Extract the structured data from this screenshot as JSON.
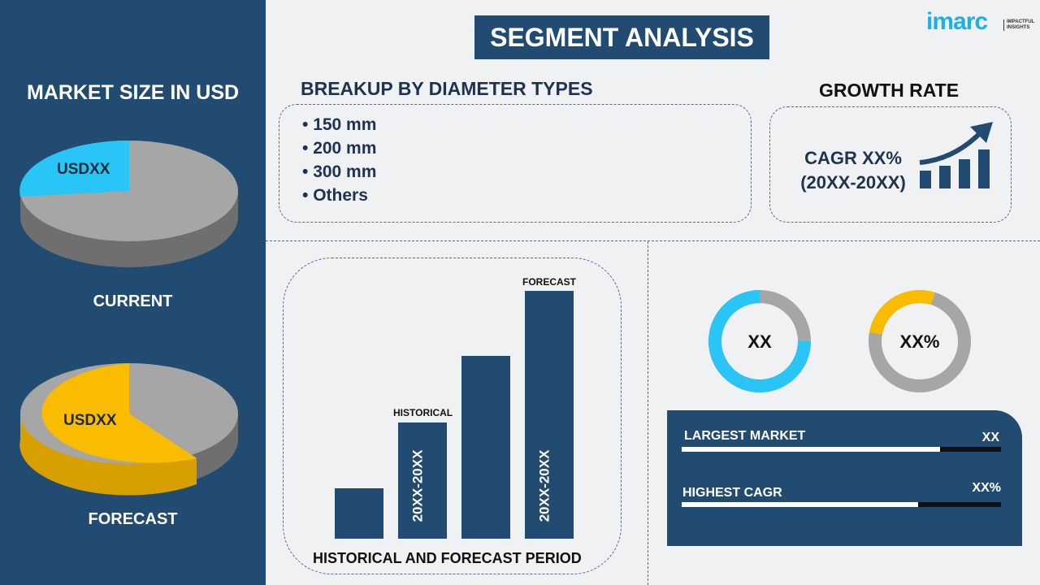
{
  "title": "SEGMENT ANALYSIS",
  "logo": {
    "brand": "imarc",
    "tagline": "IMPACTFUL INSIGHTS"
  },
  "left": {
    "heading": "MARKET SIZE IN USD",
    "current_value": "USDXX",
    "current_label": "CURRENT",
    "forecast_value": "USDXX",
    "forecast_label": "FORECAST"
  },
  "breakup": {
    "heading": "BREAKUP BY DIAMETER TYPES",
    "items": [
      "150 mm",
      "200 mm",
      "300 mm",
      "Others"
    ]
  },
  "growth": {
    "heading": "GROWTH RATE",
    "cagr": "CAGR XX%",
    "period": "(20XX-20XX)"
  },
  "bars": {
    "historical_label": "HISTORICAL",
    "forecast_label": "FORECAST",
    "historical_period": "20XX-20XX",
    "forecast_period": "20XX-20XX",
    "caption": "HISTORICAL AND FORECAST PERIOD"
  },
  "donuts": {
    "first_value": "XX",
    "first_fill": 0.75,
    "second_value": "XX%",
    "second_fill": 0.27
  },
  "stats": {
    "largest_market_label": "LARGEST MARKET",
    "largest_market_value": "XX",
    "largest_market_fill": 0.81,
    "highest_cagr_label": "HIGHEST CAGR",
    "highest_cagr_value": "XX%",
    "highest_cagr_fill": 0.74
  },
  "colors": {
    "navy": "#224b72",
    "cyan": "#29c5f6",
    "yellow": "#f9bc00",
    "gray": "#a6a6a6"
  }
}
